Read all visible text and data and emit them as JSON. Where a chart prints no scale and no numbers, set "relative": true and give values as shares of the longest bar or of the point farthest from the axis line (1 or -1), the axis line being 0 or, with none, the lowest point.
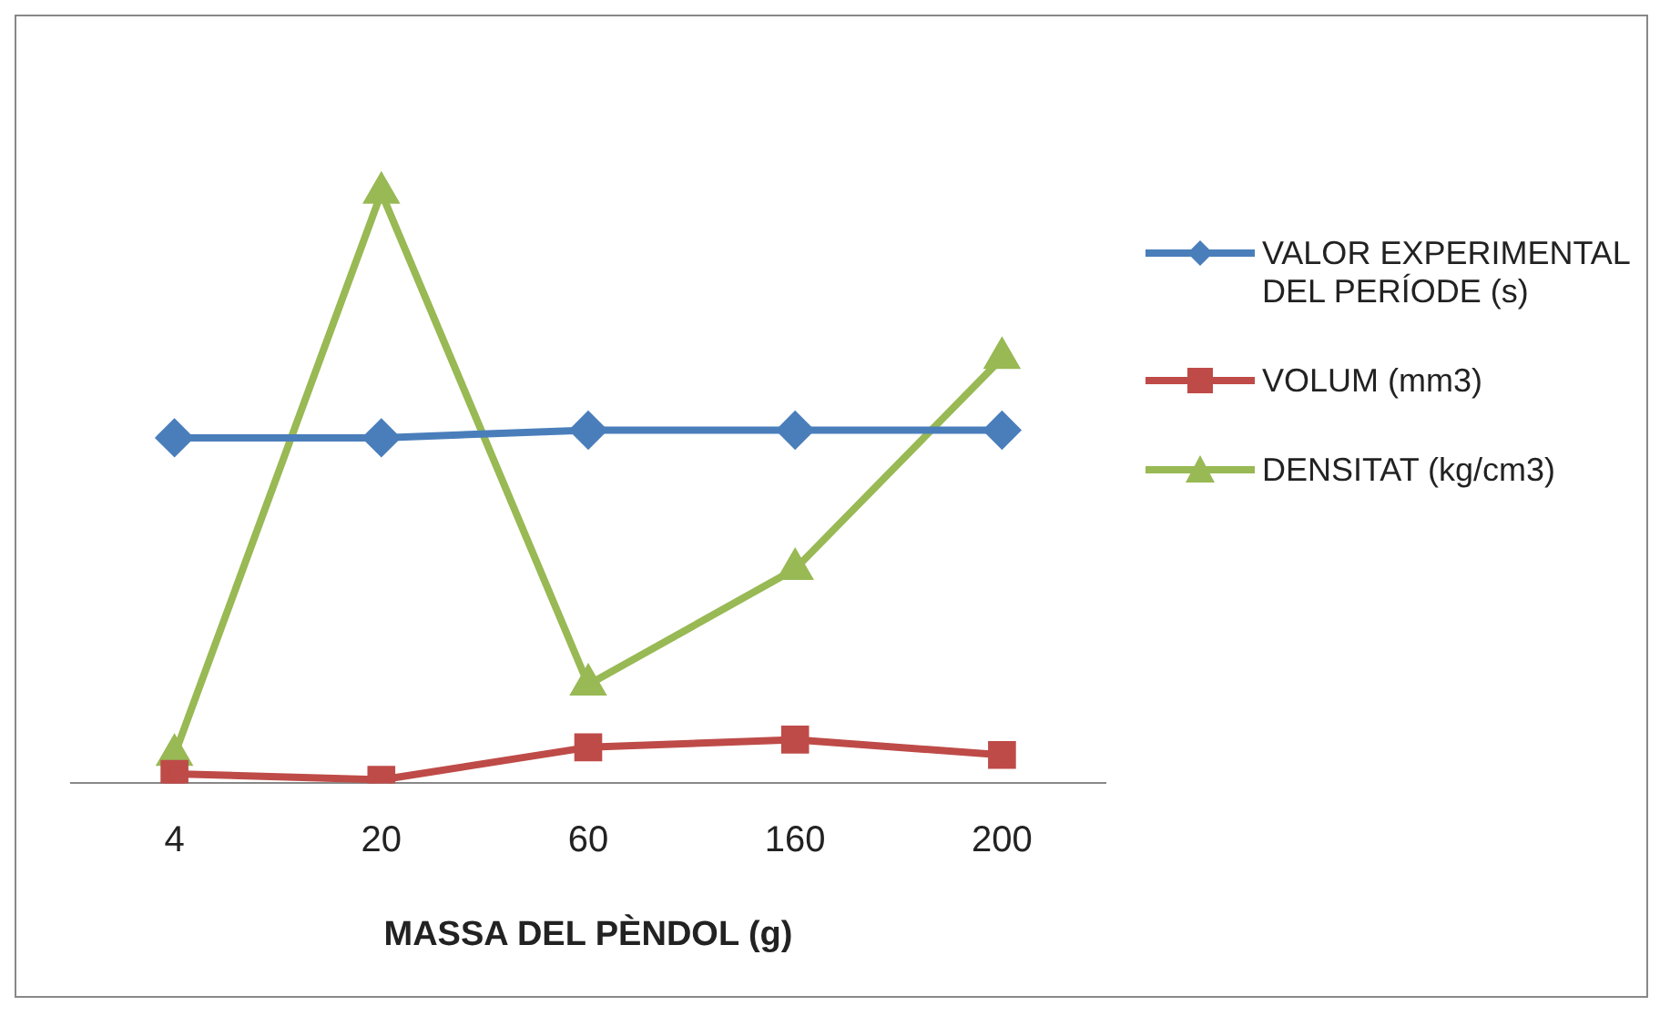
{
  "chart_data": {
    "type": "line",
    "xlabel": "MASSA DEL PÈNDOL (g)",
    "categories": [
      "4",
      "20",
      "60",
      "160",
      "200"
    ],
    "relative": true,
    "legend": "right",
    "series": [
      {
        "name": "VALOR EXPERIMENTAL DEL PERÍODE (s)",
        "color": "#4a7ebb",
        "marker": "diamond",
        "values": [
          0.585,
          0.585,
          0.598,
          0.598,
          0.598
        ]
      },
      {
        "name": "VOLUM (mm3)",
        "color": "#be4b48",
        "marker": "square",
        "values": [
          0.016,
          0.006,
          0.061,
          0.074,
          0.048
        ]
      },
      {
        "name": "DENSITAT (kg/cm3)",
        "color": "#98b954",
        "marker": "triangle",
        "values": [
          0.048,
          1,
          0.167,
          0.363,
          0.72
        ]
      }
    ]
  }
}
